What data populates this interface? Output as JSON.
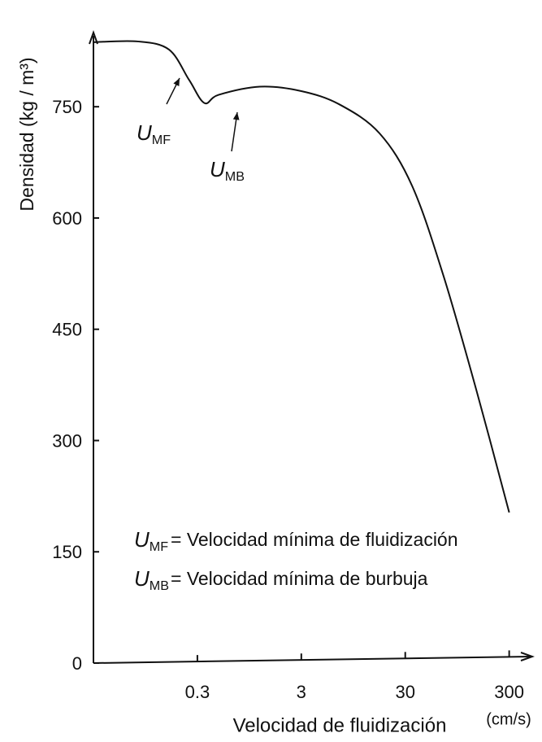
{
  "chart_data": {
    "type": "line",
    "y_label": "Densidad  (kg / m³)",
    "x_label": "Velocidad de fluidización",
    "x_unit": "(cm/s)",
    "x_scale": "log",
    "x": [
      0.03,
      0.08,
      0.16,
      0.25,
      0.35,
      0.48,
      1.2,
      3,
      7,
      17,
      35,
      70,
      145,
      300
    ],
    "values": [
      837,
      838,
      827,
      786,
      755,
      766,
      777,
      771,
      753,
      714,
      643,
      522,
      368,
      203
    ],
    "color": "#111111",
    "xlim": [
      0.03,
      500
    ],
    "ylim": [
      0,
      850
    ],
    "xticks": [
      0.3,
      3,
      30,
      300
    ],
    "yticks": [
      0,
      150,
      300,
      450,
      600,
      750
    ],
    "annotations": [
      {
        "symbol": "U",
        "sub": "MF"
      },
      {
        "symbol": "U",
        "sub": "MB"
      }
    ],
    "notes": [
      {
        "symbol": "U",
        "sub": "MF",
        "text": "=  Velocidad  mínima de fluidización"
      },
      {
        "symbol": "U",
        "sub": "MB",
        "text": "=  Velocidad  mínima de burbuja"
      }
    ]
  }
}
